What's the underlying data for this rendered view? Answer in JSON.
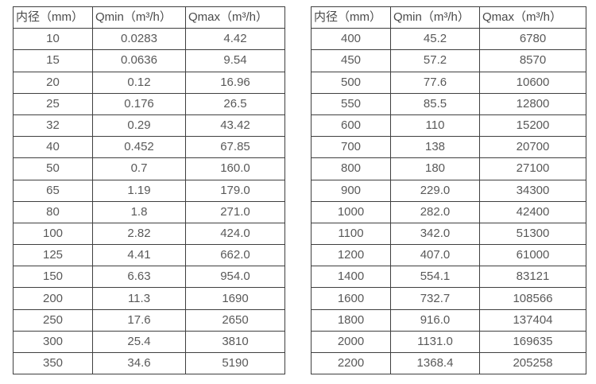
{
  "page": {
    "background": "#ffffff"
  },
  "colors": {
    "border": "#3f3f3f",
    "header_text": "#4a4a4a",
    "cell_text": "#595959"
  },
  "tables": [
    {
      "id": "left",
      "name": "flow-rate-table-dn10-350",
      "headers": [
        "内径（mm）",
        "Qmin（m³/h）",
        "Qmax（m³/h）"
      ],
      "rows": [
        [
          "10",
          "0.0283",
          "4.42"
        ],
        [
          "15",
          "0.0636",
          "9.54"
        ],
        [
          "20",
          "0.12",
          "16.96"
        ],
        [
          "25",
          "0.176",
          "26.5"
        ],
        [
          "32",
          "0.29",
          "43.42"
        ],
        [
          "40",
          "0.452",
          "67.85"
        ],
        [
          "50",
          "0.7",
          "160.0"
        ],
        [
          "65",
          "1.19",
          "179.0"
        ],
        [
          "80",
          "1.8",
          "271.0"
        ],
        [
          "100",
          "2.82",
          "424.0"
        ],
        [
          "125",
          "4.41",
          "662.0"
        ],
        [
          "150",
          "6.63",
          "954.0"
        ],
        [
          "200",
          "11.3",
          "1690"
        ],
        [
          "250",
          "17.6",
          "2650"
        ],
        [
          "300",
          "25.4",
          "3810"
        ],
        [
          "350",
          "34.6",
          "5190"
        ]
      ]
    },
    {
      "id": "right",
      "name": "flow-rate-table-dn400-2200",
      "headers": [
        "内径（mm）",
        "Qmin（m³/h）",
        "Qmax（m³/h）"
      ],
      "rows": [
        [
          "400",
          "45.2",
          "6780"
        ],
        [
          "450",
          "57.2",
          "8570"
        ],
        [
          "500",
          "77.6",
          "10600"
        ],
        [
          "550",
          "85.5",
          "12800"
        ],
        [
          "600",
          "110",
          "15200"
        ],
        [
          "700",
          "138",
          "20700"
        ],
        [
          "800",
          "180",
          "27100"
        ],
        [
          "900",
          "229.0",
          "34300"
        ],
        [
          "1000",
          "282.0",
          "42400"
        ],
        [
          "1100",
          "342.0",
          "51300"
        ],
        [
          "1200",
          "407.0",
          "61000"
        ],
        [
          "1400",
          "554.1",
          "83121"
        ],
        [
          "1600",
          "732.7",
          "108566"
        ],
        [
          "1800",
          "916.0",
          "137404"
        ],
        [
          "2000",
          "1131.0",
          "169635"
        ],
        [
          "2200",
          "1368.4",
          "205258"
        ]
      ]
    }
  ]
}
